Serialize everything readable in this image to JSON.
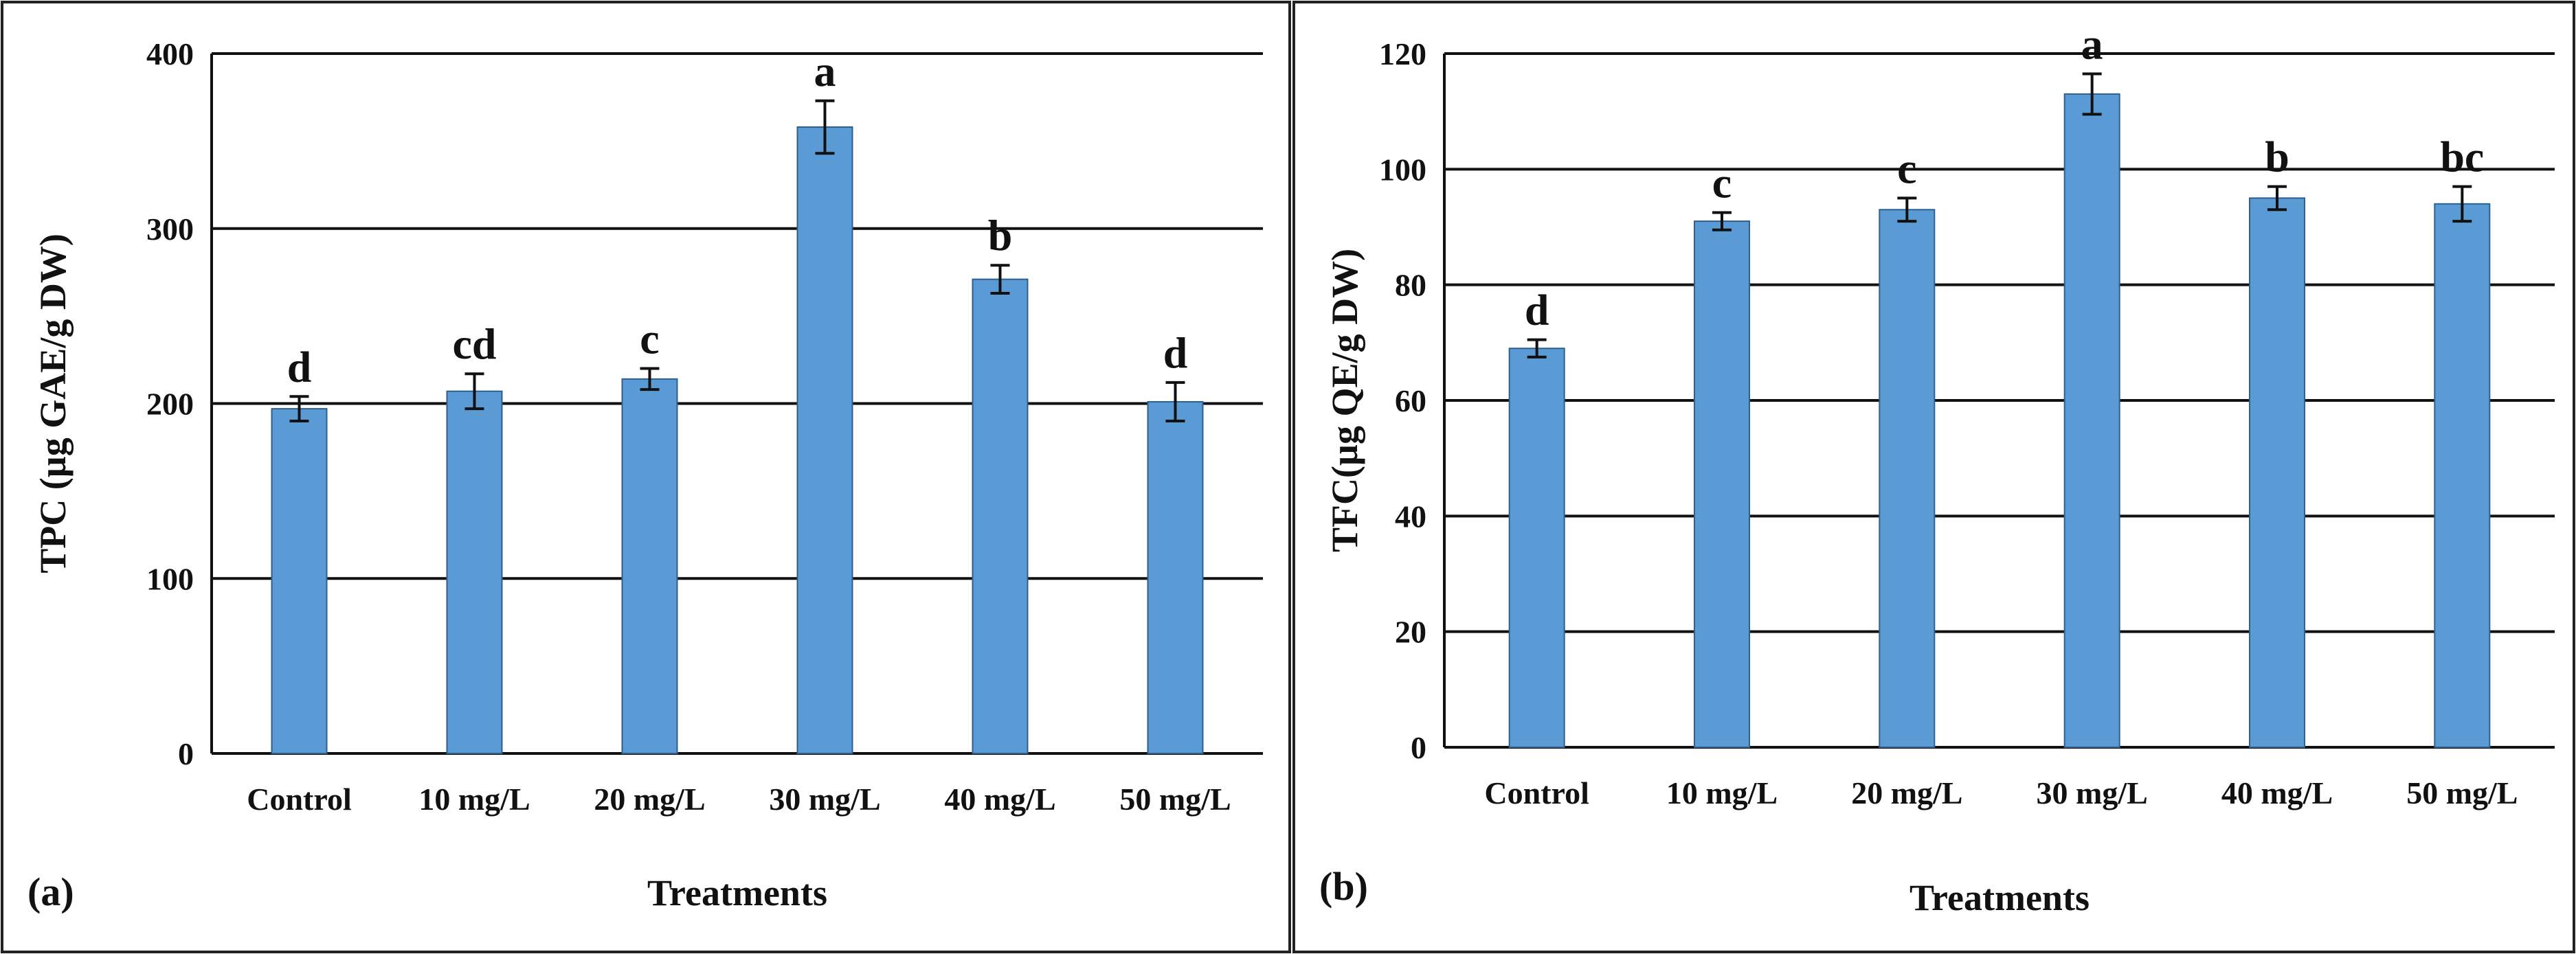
{
  "chart_data": [
    {
      "type": "bar",
      "panel_label": "(a)",
      "categories": [
        "Control",
        "10 mg/L",
        "20 mg/L",
        "30 mg/L",
        "40 mg/L",
        "50 mg/L"
      ],
      "values": [
        197,
        207,
        214,
        358,
        271,
        201
      ],
      "errors": [
        7,
        10,
        6,
        15,
        8,
        11
      ],
      "significance": [
        "d",
        "cd",
        "c",
        "a",
        "b",
        "d"
      ],
      "xlabel": "Treatments",
      "ylabel": "TPC (µg GAE/g DW)",
      "ylim": [
        0,
        400
      ],
      "yticks": [
        0,
        100,
        200,
        300,
        400
      ],
      "grid": true,
      "bar_color": "#5B9BD5"
    },
    {
      "type": "bar",
      "panel_label": "(b)",
      "categories": [
        "Control",
        "10 mg/L",
        "20 mg/L",
        "30 mg/L",
        "40 mg/L",
        "50 mg/L"
      ],
      "values": [
        69,
        91,
        93,
        113,
        95,
        94
      ],
      "errors": [
        1.5,
        1.5,
        2,
        3.5,
        2,
        3
      ],
      "significance": [
        "d",
        "c",
        "c",
        "a",
        "b",
        "bc"
      ],
      "xlabel": "Treatments",
      "ylabel": "TFC(µg QE/g DW)",
      "ylim": [
        0,
        120
      ],
      "yticks": [
        0,
        20,
        40,
        60,
        80,
        100,
        120
      ],
      "grid": true,
      "bar_color": "#5B9BD5"
    }
  ]
}
